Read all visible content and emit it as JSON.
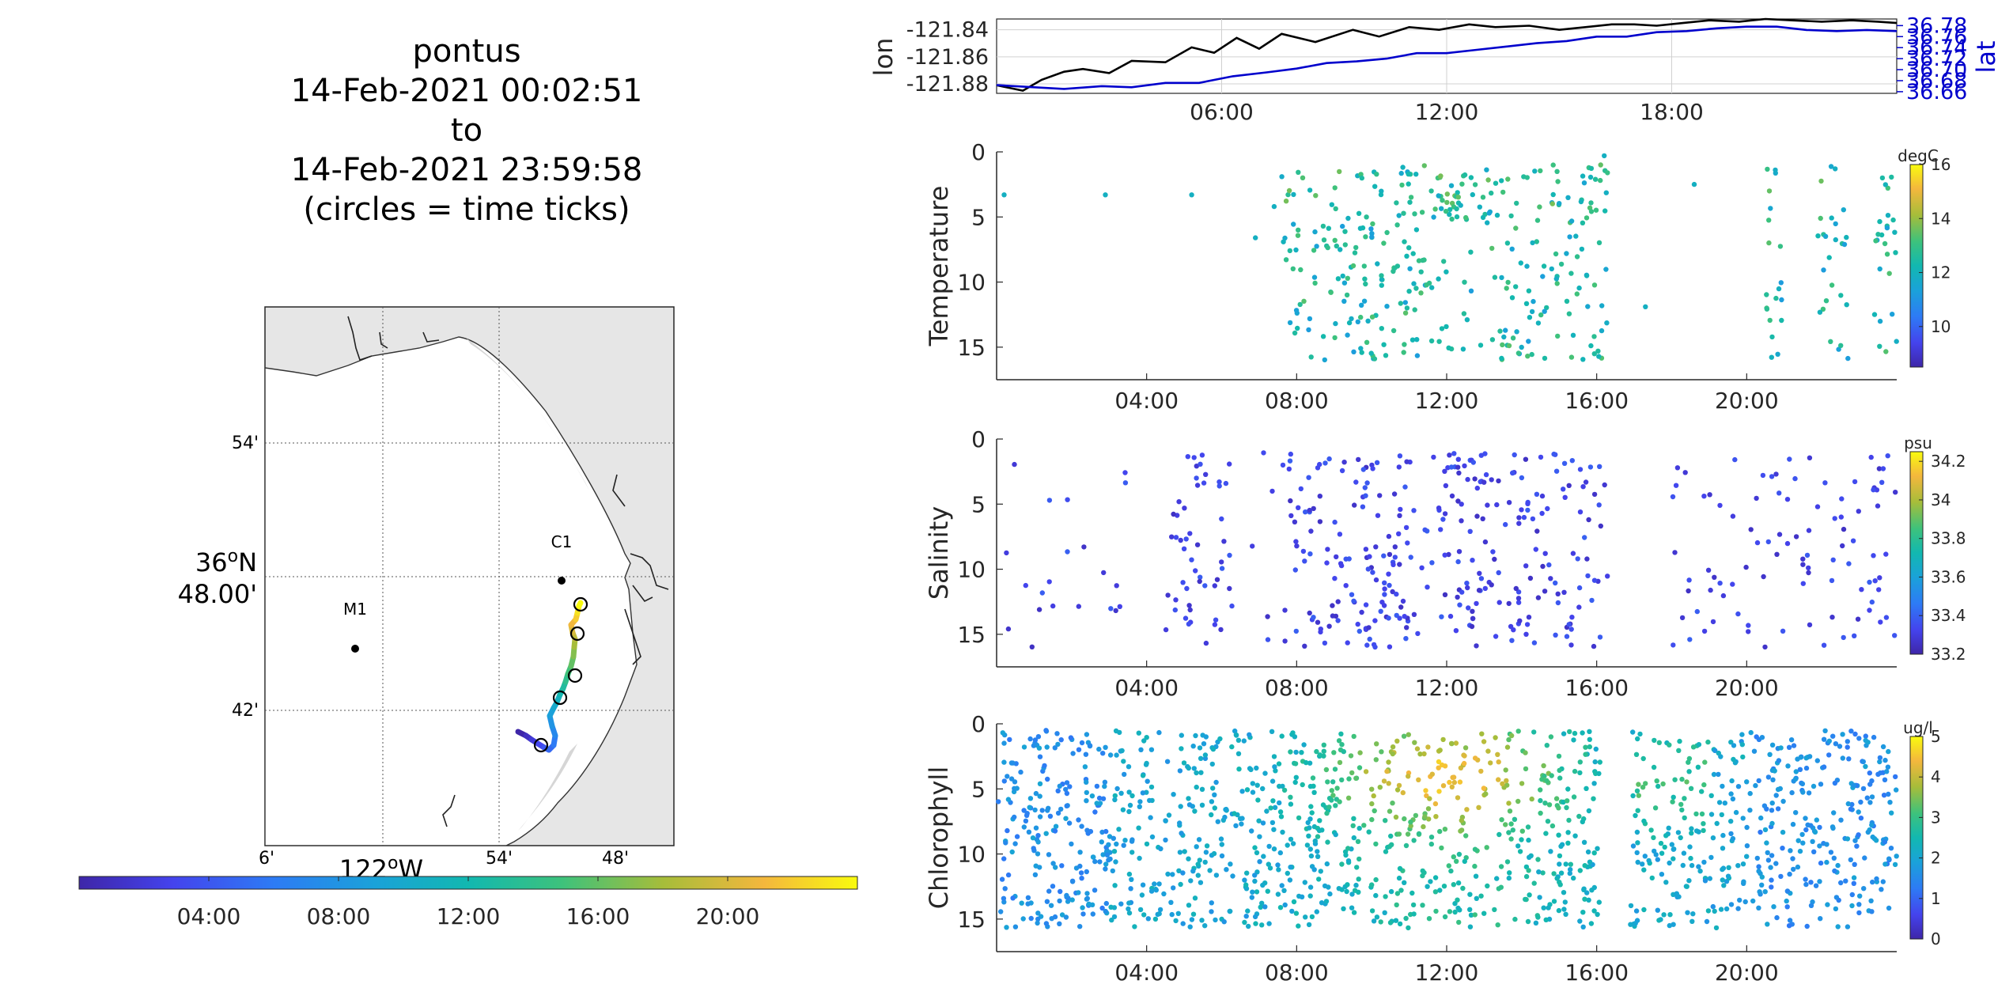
{
  "title": {
    "vehicle": "pontus",
    "start": "14-Feb-2021 00:02:51",
    "to": "to",
    "end": "14-Feb-2021 23:59:58",
    "note": "(circles = time ticks)"
  },
  "map": {
    "lat_ticks": [
      "54'",
      "36°N 48.00'",
      "42'"
    ],
    "lat_tick_parts": {
      "deg": "36",
      "sup": "o",
      "hem": "N",
      "min": "48.00'"
    },
    "lon_ticks": [
      "6'",
      "54'",
      "48'"
    ],
    "lon_center_label": {
      "deg": "122",
      "sup": "o",
      "hem": "W"
    },
    "stations": [
      {
        "name": "C1"
      },
      {
        "name": "M1"
      }
    ],
    "colors": {
      "land": "#e6e6e6",
      "water": "#ffffff",
      "track_start": "#3e26a8",
      "track_end": "#f9fb0e"
    }
  },
  "time_colorbar": {
    "ticks": [
      "04:00",
      "08:00",
      "12:00",
      "16:00",
      "20:00"
    ]
  },
  "chart_data": [
    {
      "type": "line",
      "name": "lon-lat timeseries",
      "ylabel_left": "lon",
      "ylabel_right": "lat",
      "x_ticks": [
        "06:00",
        "12:00",
        "18:00"
      ],
      "y_left_ticks": [
        "-121.84",
        "-121.86",
        "-121.88"
      ],
      "y_right_ticks": [
        "36.78",
        "36.76",
        "36.74",
        "36.72",
        "36.70",
        "36.68",
        "36.66"
      ],
      "xlim_hours": [
        0,
        24
      ],
      "ylim_left": [
        -121.887,
        -121.832
      ],
      "ylim_right": [
        36.657,
        36.792
      ],
      "series": [
        {
          "name": "lon",
          "color": "#000000",
          "x_hours": [
            0,
            0.7,
            1.2,
            1.8,
            2.3,
            3.0,
            3.6,
            4.5,
            5.2,
            5.8,
            6.4,
            7.0,
            7.6,
            8.5,
            9.5,
            10.2,
            11.0,
            11.8,
            12.6,
            13.3,
            14.2,
            15.0,
            15.7,
            16.4,
            17.0,
            17.6,
            18.3,
            19.0,
            19.8,
            20.5,
            21.2,
            22.0,
            22.8,
            23.5,
            24
          ],
          "y": [
            -121.881,
            -121.885,
            -121.877,
            -121.871,
            -121.869,
            -121.872,
            -121.863,
            -121.864,
            -121.853,
            -121.857,
            -121.846,
            -121.854,
            -121.843,
            -121.849,
            -121.84,
            -121.845,
            -121.838,
            -121.84,
            -121.836,
            -121.838,
            -121.837,
            -121.84,
            -121.838,
            -121.836,
            -121.836,
            -121.837,
            -121.835,
            -121.833,
            -121.834,
            -121.832,
            -121.833,
            -121.834,
            -121.833,
            -121.834,
            -121.835
          ]
        },
        {
          "name": "lat",
          "color": "#0000cc",
          "x_hours": [
            0,
            1.0,
            1.8,
            2.8,
            3.6,
            4.5,
            5.4,
            6.3,
            7.2,
            8.0,
            8.8,
            9.6,
            10.4,
            11.2,
            12.0,
            12.8,
            13.6,
            14.4,
            15.2,
            16.0,
            16.8,
            17.6,
            18.4,
            19.2,
            20.0,
            20.8,
            21.6,
            22.4,
            23.2,
            24
          ],
          "y": [
            36.672,
            36.668,
            36.665,
            36.67,
            36.668,
            36.676,
            36.676,
            36.688,
            36.695,
            36.702,
            36.712,
            36.715,
            36.72,
            36.73,
            36.73,
            36.736,
            36.742,
            36.748,
            36.752,
            36.76,
            36.76,
            36.768,
            36.77,
            36.775,
            36.778,
            36.778,
            36.772,
            36.77,
            36.772,
            36.77
          ]
        }
      ]
    },
    {
      "type": "scatter",
      "name": "Temperature",
      "ylabel": "Temperature",
      "colorbar_unit": "degC",
      "colorbar_ticks": [
        "16",
        "14",
        "12",
        "10"
      ],
      "clim": [
        8.5,
        16
      ],
      "y_ticks": [
        "0",
        "5",
        "10",
        "15"
      ],
      "x_ticks": [
        "04:00",
        "08:00",
        "12:00",
        "16:00",
        "20:00"
      ],
      "xlim_hours": [
        0,
        24
      ],
      "ylim": [
        0,
        17.5
      ],
      "points_summary": "depth vs time, sparse samples, mostly 11-13 degC",
      "seed": 11,
      "count": 420
    },
    {
      "type": "scatter",
      "name": "Salinity",
      "ylabel": "Salinity",
      "colorbar_unit": "psu",
      "colorbar_ticks": [
        "34.2",
        "34",
        "33.8",
        "33.6",
        "33.4",
        "33.2"
      ],
      "clim": [
        33.2,
        34.25
      ],
      "y_ticks": [
        "0",
        "5",
        "10",
        "15"
      ],
      "x_ticks": [
        "04:00",
        "08:00",
        "12:00",
        "16:00",
        "20:00"
      ],
      "xlim_hours": [
        0,
        24
      ],
      "ylim": [
        0,
        17.5
      ],
      "seed": 23,
      "count": 520
    },
    {
      "type": "scatter",
      "name": "Chlorophyll",
      "ylabel": "Chlorophyll",
      "colorbar_unit": "ug/l",
      "colorbar_ticks": [
        "5",
        "4",
        "3",
        "2",
        "1",
        "0"
      ],
      "clim": [
        0,
        5
      ],
      "y_ticks": [
        "0",
        "5",
        "10",
        "15"
      ],
      "x_ticks": [
        "04:00",
        "08:00",
        "12:00",
        "16:00",
        "20:00"
      ],
      "xlim_hours": [
        0,
        24
      ],
      "ylim": [
        0,
        17.5
      ],
      "seed": 37,
      "count": 1500
    }
  ]
}
